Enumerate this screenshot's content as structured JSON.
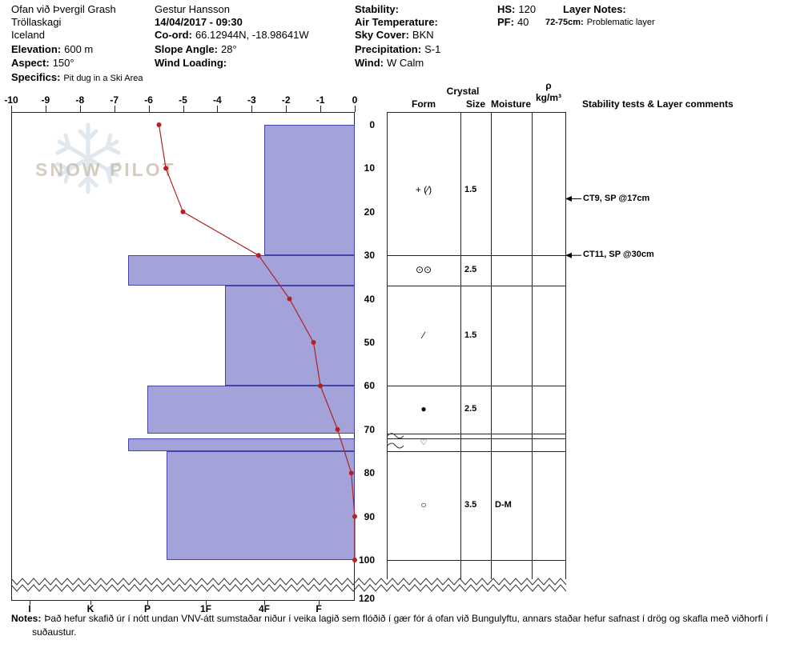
{
  "header": {
    "site1": "Ofan við Þvergil Grash",
    "site2": "Tröllaskagi",
    "site3": "Iceland",
    "elevation_label": "Elevation:",
    "elevation": "600 m",
    "aspect_label": "Aspect:",
    "aspect": "150°",
    "specifics_label": "Specifics:",
    "specifics": "Pit dug in a Ski Area",
    "observer": "Gestur Hansson",
    "datetime": "14/04/2017 - 09:30",
    "coord_label": "Co-ord:",
    "coord": "66.12944N, -18.98641W",
    "slope_label": "Slope Angle:",
    "slope": "28°",
    "wind_loading_label": "Wind Loading:",
    "stability_label": "Stability:",
    "air_temp_label": "Air Temperature:",
    "sky_label": "Sky Cover:",
    "sky": "BKN",
    "precip_label": "Precipitation:",
    "precip": "S-1",
    "wind_label": "Wind:",
    "wind": "W Calm",
    "hs_label": "HS:",
    "hs": "120",
    "pf_label": "PF:",
    "pf": "40",
    "layer_notes_label": "Layer Notes:",
    "layer_note_depth": "72-75cm:",
    "layer_note_text": "Problematic layer"
  },
  "watermark": {
    "text": "SNOW PILOT"
  },
  "table": {
    "crystal": "Crystal",
    "form": "Form",
    "size": "Size",
    "moisture": "Moisture",
    "density_symbol": "ρ",
    "density_unit": "kg/m³",
    "comments": "Stability tests & Layer comments"
  },
  "chart_data": {
    "type": "snow-profile",
    "temperature_axis": {
      "unit": "°C",
      "min": -10,
      "max": 0,
      "ticks": [
        -10,
        -9,
        -8,
        -7,
        -6,
        -5,
        -4,
        -3,
        -2,
        -1,
        0
      ]
    },
    "depth_axis": {
      "unit": "cm",
      "ticks": [
        0,
        10,
        20,
        30,
        40,
        50,
        60,
        70,
        80,
        90,
        100
      ],
      "bottom_label": "120"
    },
    "hardness_axis": {
      "labels": [
        "I",
        "K",
        "P",
        "1F",
        "4F",
        "F"
      ]
    },
    "temperature_profile": {
      "depths_cm": [
        0,
        10,
        20,
        30,
        40,
        50,
        60,
        70,
        80,
        90,
        100
      ],
      "temps_c": [
        -5.7,
        -5.5,
        -5.0,
        -2.8,
        -1.9,
        -1.2,
        -1.0,
        -0.5,
        -0.1,
        0,
        0
      ]
    },
    "layers": [
      {
        "top_cm": 0,
        "bottom_cm": 30,
        "hardness": "4F",
        "form": "+ (∕)",
        "size": "1.5",
        "moisture": ""
      },
      {
        "top_cm": 30,
        "bottom_cm": 37,
        "hardness": "P+",
        "form": "⊙⊙",
        "size": "2.5",
        "moisture": ""
      },
      {
        "top_cm": 37,
        "bottom_cm": 60,
        "hardness": "1F-",
        "form": "∕",
        "size": "1.5",
        "moisture": ""
      },
      {
        "top_cm": 60,
        "bottom_cm": 71,
        "hardness": "P",
        "form": "●",
        "size": "2.5",
        "moisture": ""
      },
      {
        "top_cm": 72,
        "bottom_cm": 75,
        "hardness": "P+",
        "form": "♡",
        "size": "",
        "moisture": "",
        "thin": true
      },
      {
        "top_cm": 75,
        "bottom_cm": 100,
        "hardness": "P-",
        "form": "○",
        "size": "3.5",
        "moisture": "D-M"
      }
    ],
    "stability_tests": [
      {
        "depth_cm": 17,
        "label": "CT9, SP @17cm"
      },
      {
        "depth_cm": 30,
        "label": "CT11, SP @30cm"
      }
    ],
    "colors": {
      "bar_fill": "#a3a3d9",
      "bar_border": "#4343a8",
      "temp_line": "#b22222"
    }
  },
  "notes": {
    "label": "Notes:",
    "text": "Það hefur skafið úr í nótt undan VNV-átt sumstaðar niður í veika lagið sem flóðið í gær fór á ofan við Bungulyftu, annars staðar hefur safnast í drög og skafla með viðhorfi í suðaustur."
  }
}
